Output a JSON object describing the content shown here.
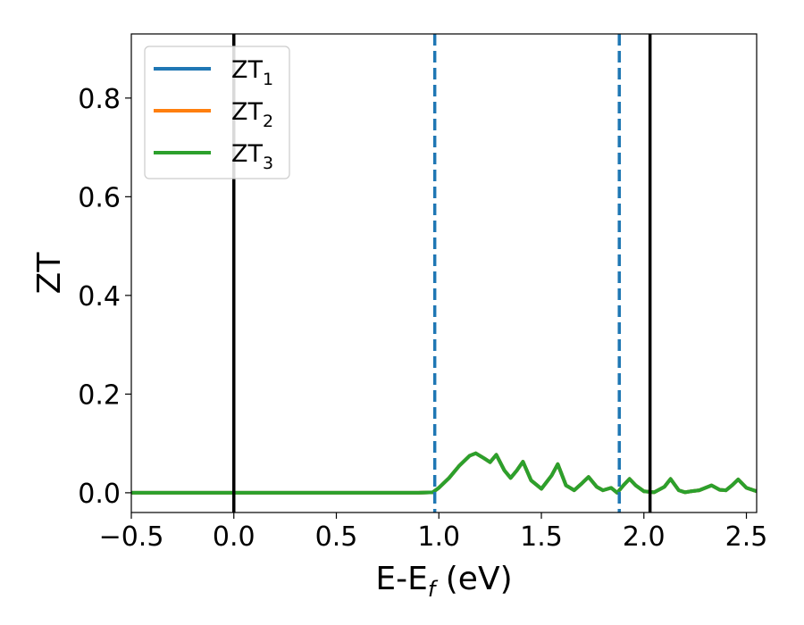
{
  "chart_data": {
    "type": "line",
    "xlabel_main": "E-E",
    "xlabel_sub": "f",
    "xlabel_unit": " (eV)",
    "ylabel": "ZT",
    "xlim": [
      -0.5,
      2.55
    ],
    "ylim": [
      -0.04,
      0.93
    ],
    "xticks": [
      -0.5,
      0.0,
      0.5,
      1.0,
      1.5,
      2.0,
      2.5
    ],
    "xtick_labels": [
      "−0.5",
      "0.0",
      "0.5",
      "1.0",
      "1.5",
      "2.0",
      "2.5"
    ],
    "yticks": [
      0.0,
      0.2,
      0.4,
      0.6,
      0.8
    ],
    "ytick_labels": [
      "0.0",
      "0.2",
      "0.4",
      "0.6",
      "0.8"
    ],
    "legend_position": "top-left",
    "vlines_solid": [
      0.0,
      2.03
    ],
    "vlines_dashed": [
      0.98,
      1.88
    ],
    "series": [
      {
        "name": "ZT",
        "subscript": "1",
        "color": "#1f77b4",
        "x": [
          -0.5,
          0.0,
          0.5,
          0.9,
          0.97,
          1.0,
          1.05,
          1.1,
          1.15,
          1.18,
          1.22,
          1.25,
          1.28,
          1.32,
          1.35,
          1.38,
          1.41,
          1.45,
          1.5,
          1.55,
          1.58,
          1.62,
          1.66,
          1.7,
          1.73,
          1.77,
          1.8,
          1.84,
          1.87,
          1.9,
          1.93,
          1.96,
          2.0,
          2.05,
          2.1,
          2.13,
          2.17,
          2.2,
          2.23,
          2.27,
          2.3,
          2.33,
          2.37,
          2.4,
          2.43,
          2.46,
          2.5,
          2.55
        ],
        "y": [
          0.0,
          0.0,
          0.0,
          0.0,
          0.001,
          0.01,
          0.03,
          0.055,
          0.075,
          0.08,
          0.07,
          0.062,
          0.077,
          0.045,
          0.03,
          0.045,
          0.063,
          0.025,
          0.008,
          0.035,
          0.058,
          0.015,
          0.005,
          0.02,
          0.032,
          0.012,
          0.005,
          0.01,
          0.0,
          0.015,
          0.028,
          0.015,
          0.003,
          0.001,
          0.012,
          0.028,
          0.005,
          0.001,
          0.003,
          0.005,
          0.01,
          0.015,
          0.006,
          0.005,
          0.015,
          0.027,
          0.01,
          0.003
        ]
      },
      {
        "name": "ZT",
        "subscript": "2",
        "color": "#ff7f0e",
        "x": [
          -0.5,
          0.0,
          0.5,
          0.9,
          0.97,
          1.0,
          1.05,
          1.1,
          1.15,
          1.18,
          1.22,
          1.25,
          1.28,
          1.32,
          1.35,
          1.38,
          1.41,
          1.45,
          1.5,
          1.55,
          1.58,
          1.62,
          1.66,
          1.7,
          1.73,
          1.77,
          1.8,
          1.84,
          1.87,
          1.9,
          1.93,
          1.96,
          2.0,
          2.05,
          2.1,
          2.13,
          2.17,
          2.2,
          2.23,
          2.27,
          2.3,
          2.33,
          2.37,
          2.4,
          2.43,
          2.46,
          2.5,
          2.55
        ],
        "y": [
          0.0,
          0.0,
          0.0,
          0.0,
          0.001,
          0.01,
          0.03,
          0.055,
          0.075,
          0.08,
          0.07,
          0.062,
          0.077,
          0.045,
          0.03,
          0.045,
          0.063,
          0.025,
          0.008,
          0.035,
          0.058,
          0.015,
          0.005,
          0.02,
          0.032,
          0.012,
          0.005,
          0.01,
          0.0,
          0.015,
          0.028,
          0.015,
          0.003,
          0.001,
          0.012,
          0.028,
          0.005,
          0.001,
          0.003,
          0.005,
          0.01,
          0.015,
          0.006,
          0.005,
          0.015,
          0.027,
          0.01,
          0.003
        ]
      },
      {
        "name": "ZT",
        "subscript": "3",
        "color": "#2ca02c",
        "x": [
          -0.5,
          0.0,
          0.5,
          0.9,
          0.97,
          1.0,
          1.05,
          1.1,
          1.15,
          1.18,
          1.22,
          1.25,
          1.28,
          1.32,
          1.35,
          1.38,
          1.41,
          1.45,
          1.5,
          1.55,
          1.58,
          1.62,
          1.66,
          1.7,
          1.73,
          1.77,
          1.8,
          1.84,
          1.87,
          1.9,
          1.93,
          1.96,
          2.0,
          2.05,
          2.1,
          2.13,
          2.17,
          2.2,
          2.23,
          2.27,
          2.3,
          2.33,
          2.37,
          2.4,
          2.43,
          2.46,
          2.5,
          2.55
        ],
        "y": [
          0.0,
          0.0,
          0.0,
          0.0,
          0.001,
          0.01,
          0.03,
          0.055,
          0.075,
          0.08,
          0.07,
          0.062,
          0.077,
          0.045,
          0.03,
          0.045,
          0.063,
          0.025,
          0.008,
          0.035,
          0.058,
          0.015,
          0.005,
          0.02,
          0.032,
          0.012,
          0.005,
          0.01,
          0.0,
          0.015,
          0.028,
          0.015,
          0.003,
          0.001,
          0.012,
          0.028,
          0.005,
          0.001,
          0.003,
          0.005,
          0.01,
          0.015,
          0.006,
          0.005,
          0.015,
          0.027,
          0.01,
          0.003
        ]
      }
    ]
  }
}
